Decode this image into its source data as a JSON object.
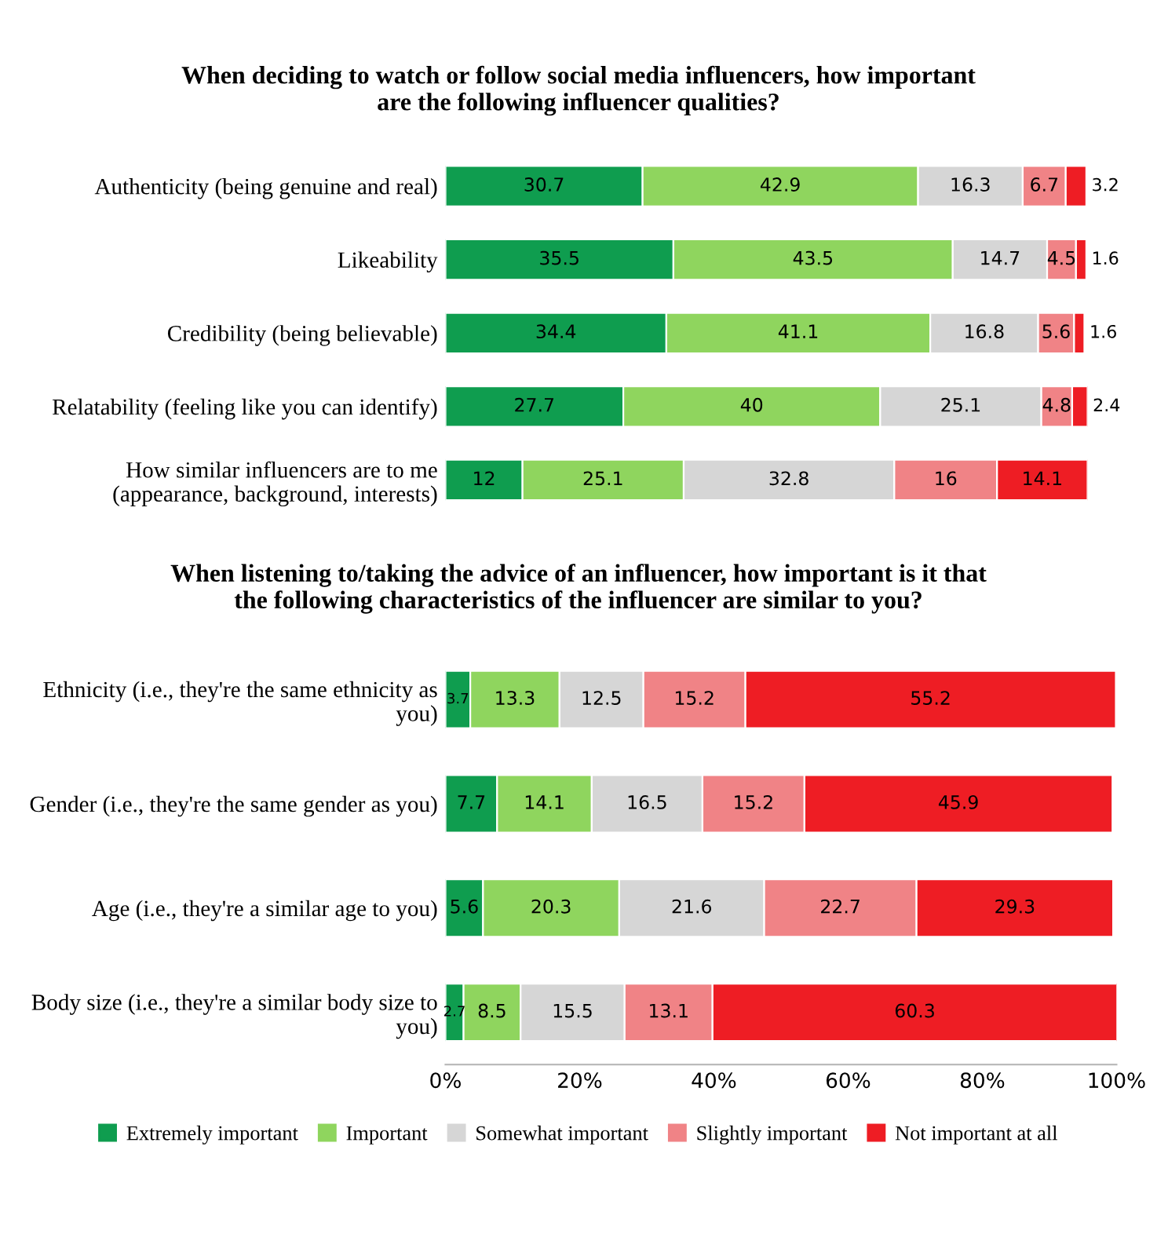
{
  "chart_data": [
    {
      "type": "bar",
      "orientation": "horizontal",
      "stacked": true,
      "data_labels": true,
      "tick_labels": "y",
      "legend": false,
      "grid": false,
      "title": "When deciding to watch or follow social media influencers, how important\nare the following influencer qualities?",
      "categories": [
        "Authenticity (being genuine and real)",
        "Likeability",
        "Credibility (being believable)",
        "Relatability (feeling like you can identify)",
        "How similar influencers are to me\n(appearance, background, interests)"
      ],
      "series": [
        {
          "color": "#0f9d4f",
          "values": [
            30.7,
            35.5,
            34.4,
            27.7,
            12
          ]
        },
        {
          "color": "#8fd55e",
          "values": [
            42.9,
            43.5,
            41.1,
            40,
            25.1
          ]
        },
        {
          "color": "#d6d6d6",
          "values": [
            16.3,
            14.7,
            16.8,
            25.1,
            32.8
          ]
        },
        {
          "color": "#f08386",
          "values": [
            6.7,
            4.5,
            5.6,
            4.8,
            16
          ]
        },
        {
          "color": "#ee1d24",
          "values": [
            3.2,
            1.6,
            1.6,
            2.4,
            14.1
          ]
        }
      ]
    },
    {
      "type": "bar",
      "orientation": "horizontal",
      "stacked": true,
      "data_labels": true,
      "legend": "bottom",
      "grid": false,
      "title": "When listening to/taking the advice of an influencer, how important is it that\nthe following characteristics of the influencer are similar to you?",
      "categories": [
        "Ethnicity (i.e., they're the same ethnicity as\nyou)",
        "Gender (i.e., they're the same gender as you)",
        "Age (i.e., they're a similar age to you)",
        "Body size (i.e., they're a similar body size to\nyou)"
      ],
      "xlim": [
        0,
        100
      ],
      "xticks": [
        {
          "value": 0,
          "label": "0%"
        },
        {
          "value": 20,
          "label": "20%"
        },
        {
          "value": 40,
          "label": "40%"
        },
        {
          "value": 60,
          "label": "60%"
        },
        {
          "value": 80,
          "label": "80%"
        },
        {
          "value": 100,
          "label": "100%"
        }
      ],
      "series": [
        {
          "name": "Extremely important",
          "color": "#0f9d4f",
          "values": [
            3.7,
            7.7,
            5.6,
            2.7
          ]
        },
        {
          "name": "Important",
          "color": "#8fd55e",
          "values": [
            13.3,
            14.1,
            20.3,
            8.5
          ]
        },
        {
          "name": "Somewhat important",
          "color": "#d6d6d6",
          "values": [
            12.5,
            16.5,
            21.6,
            15.5
          ]
        },
        {
          "name": "Slightly important",
          "color": "#f08386",
          "values": [
            15.2,
            15.2,
            22.7,
            13.1
          ]
        },
        {
          "name": "Not important at all",
          "color": "#ee1d24",
          "values": [
            55.2,
            45.9,
            29.3,
            60.3
          ]
        }
      ]
    }
  ]
}
